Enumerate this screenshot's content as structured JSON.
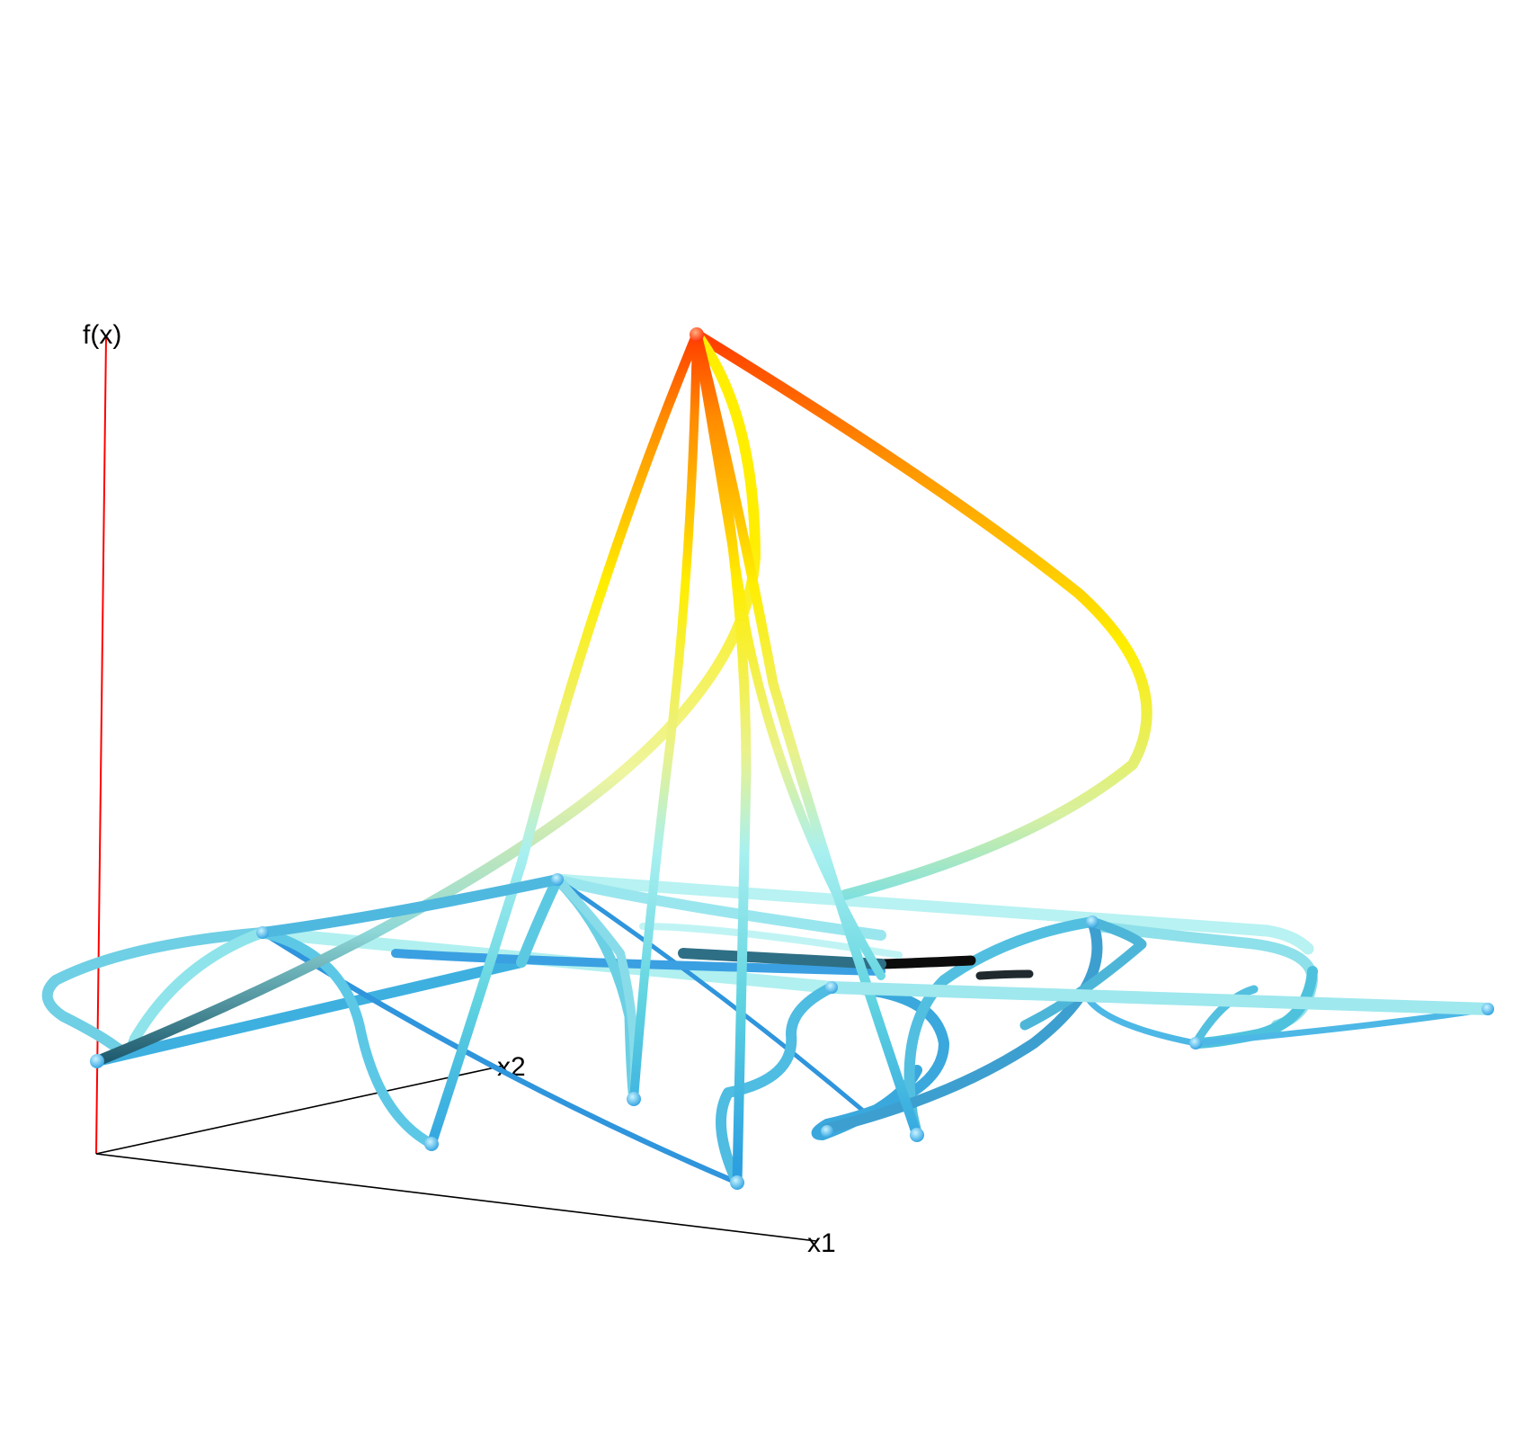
{
  "axes": {
    "vertical_label": "f(x)",
    "depth_label": "x2",
    "horizontal_label": "x1",
    "vertical_color": "#ff0000",
    "base_color": "#000000"
  },
  "colors": {
    "peak": "#ff3a00",
    "orange": "#ff8a00",
    "yellow": "#ffee00",
    "light_yellow": "#eef5a0",
    "cyan_light": "#a9f0f0",
    "cyan": "#5fd3e0",
    "blue": "#2b9fe0",
    "deep_blue": "#1e7fd0",
    "dark": "#0a1a22"
  },
  "icons": [
    "apex-node-icon",
    "vertex-node-icon"
  ]
}
